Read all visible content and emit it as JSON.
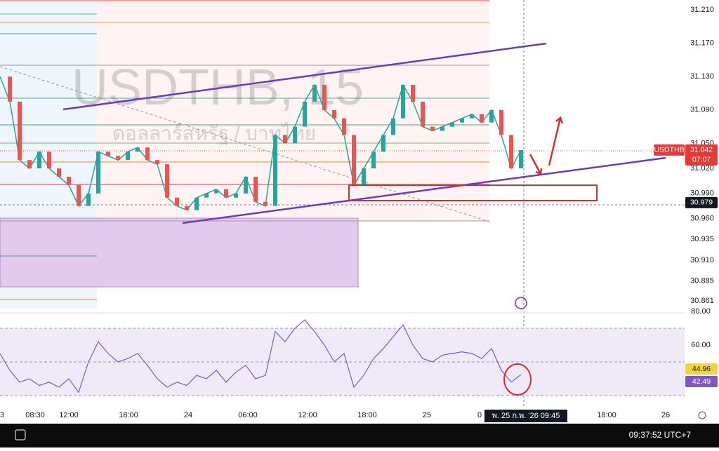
{
  "symbol_watermark": "USDTHB, 15",
  "name_watermark": "ดอลลาร์สหรัฐ / บาทไทย",
  "price_axis": {
    "ylim": [
      30.85,
      31.22
    ],
    "ticks": [
      {
        "value": 31.21,
        "label": "31.210"
      },
      {
        "value": 31.17,
        "label": "31.170"
      },
      {
        "value": 31.13,
        "label": "31.130"
      },
      {
        "value": 31.09,
        "label": "31.090"
      },
      {
        "value": 31.05,
        "label": "31.050"
      },
      {
        "value": 31.02,
        "label": "31.020"
      },
      {
        "value": 30.99,
        "label": "30.990"
      },
      {
        "value": 30.96,
        "label": "30.960"
      },
      {
        "value": 30.935,
        "label": "30.935"
      },
      {
        "value": 30.91,
        "label": "30.910"
      },
      {
        "value": 30.885,
        "label": "30.885"
      },
      {
        "value": 30.861,
        "label": "30.861"
      }
    ]
  },
  "price_series": {
    "values": [
      31.13,
      31.1,
      31.03,
      31.02,
      31.04,
      31.02,
      31.01,
      31.0,
      30.975,
      30.99,
      31.04,
      31.035,
      31.03,
      31.04,
      31.045,
      31.03,
      31.025,
      30.985,
      30.975,
      30.97,
      30.985,
      30.99,
      30.995,
      30.985,
      30.99,
      31.01,
      30.98,
      30.975,
      31.06,
      31.05,
      31.07,
      31.1,
      31.12,
      31.09,
      31.08,
      31.06,
      31.0,
      31.02,
      31.04,
      31.06,
      31.08,
      31.12,
      31.1,
      31.07,
      31.065,
      31.07,
      31.075,
      31.08,
      31.085,
      31.075,
      31.09,
      31.06,
      31.02,
      31.042
    ]
  },
  "last_price": {
    "symbol": "USDTHB",
    "value": {
      "value": 31.042,
      "label": "31.042"
    },
    "countdown": "07:07"
  },
  "crosshair_price": {
    "value": 30.979,
    "label": "30.979"
  },
  "rsi_axis": {
    "ylim": [
      25,
      80
    ],
    "ticks": [
      {
        "value": 80,
        "label": "80.00"
      },
      {
        "value": 60,
        "label": "60.00"
      }
    ]
  },
  "rsi_series": {
    "values": [
      55,
      45,
      38,
      40,
      36,
      38,
      35,
      40,
      32,
      50,
      62,
      55,
      50,
      52,
      55,
      48,
      40,
      35,
      38,
      36,
      42,
      40,
      45,
      38,
      44,
      48,
      40,
      42,
      68,
      62,
      70,
      75,
      68,
      60,
      50,
      55,
      35,
      42,
      52,
      58,
      65,
      72,
      60,
      52,
      50,
      54,
      55,
      56,
      55,
      52,
      58,
      45,
      38,
      42.49
    ]
  },
  "rsi_ma": {
    "value": 44.96,
    "label": "44.96"
  },
  "rsi_value": {
    "value": 42.49,
    "label": "42.49"
  },
  "time_axis": [
    "3",
    "08:30",
    "12:00",
    "18:00",
    "24",
    "06:00",
    "12:00",
    "18:00",
    "25",
    "0",
    "18:00",
    "26"
  ],
  "time_cursor": "พ. 25 ก.พ. '26   09:45",
  "clock": "09:37:52 UTC+7"
}
